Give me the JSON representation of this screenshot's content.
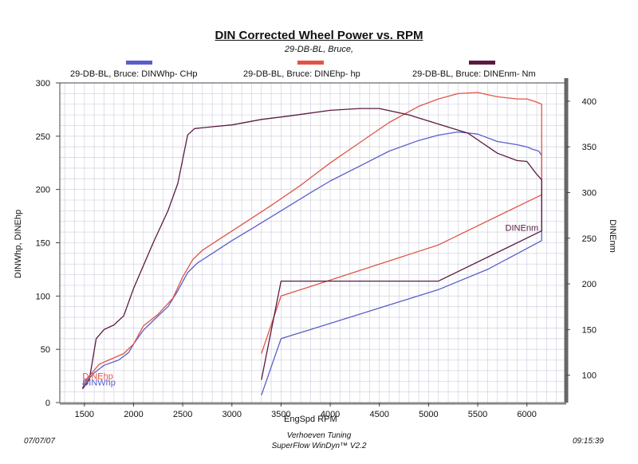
{
  "header": {
    "title": "DIN Corrected Wheel Power vs. RPM",
    "subtitle": "29-DB-BL, Bruce,"
  },
  "legend": [
    {
      "label": "29-DB-BL, Bruce: DINWhp- CHp",
      "color": "#5a5fc8"
    },
    {
      "label": "29-DB-BL, Bruce: DINEhp-  hp",
      "color": "#e05545"
    },
    {
      "label": "29-DB-BL, Bruce: DINEnm-  Nm",
      "color": "#5a1a40"
    }
  ],
  "axes": {
    "x_title": "EngSpd  RPM",
    "y_left_title": "DINWhp, DINEhp",
    "y_right_title": "DINEnm"
  },
  "footer": {
    "date": "07/07/07",
    "time": "09:15:39",
    "line1": "Verhoeven Tuning",
    "line2": "SuperFlow WinDyn™ V2.2"
  },
  "chart_data": {
    "type": "line",
    "xlabel": "EngSpd  RPM",
    "ylabel": "DINWhp, DINEhp",
    "y2label": "DINEnm",
    "xlim": [
      1250,
      6400
    ],
    "ylim": [
      0,
      300
    ],
    "y2lim": [
      70,
      420
    ],
    "xticks": [
      1500,
      2000,
      2500,
      3000,
      3500,
      4000,
      4500,
      5000,
      5500,
      6000
    ],
    "yticks": [
      0,
      50,
      100,
      150,
      200,
      250,
      300
    ],
    "y2ticks": [
      100,
      150,
      200,
      250,
      300,
      350,
      400
    ],
    "grid": true,
    "series": [
      {
        "name": "DINWhp",
        "axis": "left",
        "color": "#5a5fc8",
        "points": [
          [
            1480,
            14
          ],
          [
            1520,
            20
          ],
          [
            1600,
            28
          ],
          [
            1700,
            35
          ],
          [
            1850,
            40
          ],
          [
            1950,
            47
          ],
          [
            2000,
            55
          ],
          [
            2100,
            68
          ],
          [
            2200,
            77
          ],
          [
            2350,
            90
          ],
          [
            2450,
            105
          ],
          [
            2550,
            122
          ],
          [
            2650,
            131
          ],
          [
            2800,
            140
          ],
          [
            3000,
            152
          ],
          [
            3200,
            163
          ],
          [
            3500,
            180
          ],
          [
            3800,
            197
          ],
          [
            4000,
            208
          ],
          [
            4300,
            222
          ],
          [
            4600,
            236
          ],
          [
            4900,
            246
          ],
          [
            5100,
            251
          ],
          [
            5300,
            254
          ],
          [
            5500,
            252
          ],
          [
            5700,
            245
          ],
          [
            5900,
            242
          ],
          [
            6000,
            240
          ],
          [
            6050,
            238
          ],
          [
            6120,
            236
          ],
          [
            6150,
            232
          ],
          [
            6150,
            152
          ],
          [
            5600,
            125
          ],
          [
            5100,
            106
          ],
          [
            3500,
            60
          ],
          [
            3300,
            7
          ]
        ]
      },
      {
        "name": "DINEhp",
        "axis": "left",
        "color": "#e05545",
        "points": [
          [
            1480,
            17
          ],
          [
            1550,
            25
          ],
          [
            1650,
            36
          ],
          [
            1750,
            40
          ],
          [
            1900,
            46
          ],
          [
            2000,
            55
          ],
          [
            2100,
            72
          ],
          [
            2250,
            83
          ],
          [
            2400,
            98
          ],
          [
            2500,
            118
          ],
          [
            2600,
            134
          ],
          [
            2700,
            143
          ],
          [
            2900,
            155
          ],
          [
            3100,
            167
          ],
          [
            3400,
            185
          ],
          [
            3700,
            204
          ],
          [
            4000,
            225
          ],
          [
            4300,
            244
          ],
          [
            4600,
            263
          ],
          [
            4900,
            278
          ],
          [
            5100,
            285
          ],
          [
            5300,
            290
          ],
          [
            5500,
            291
          ],
          [
            5600,
            289
          ],
          [
            5700,
            287
          ],
          [
            5900,
            285
          ],
          [
            6000,
            285
          ],
          [
            6100,
            282
          ],
          [
            6150,
            280
          ],
          [
            6150,
            195
          ],
          [
            5100,
            148
          ],
          [
            3500,
            100
          ],
          [
            3300,
            46
          ]
        ]
      },
      {
        "name": "DINEnm",
        "axis": "right",
        "color": "#5a1a40",
        "points": [
          [
            1480,
            85
          ],
          [
            1550,
            95
          ],
          [
            1620,
            140
          ],
          [
            1700,
            150
          ],
          [
            1800,
            155
          ],
          [
            1900,
            165
          ],
          [
            2000,
            195
          ],
          [
            2100,
            220
          ],
          [
            2200,
            245
          ],
          [
            2350,
            280
          ],
          [
            2450,
            310
          ],
          [
            2550,
            363
          ],
          [
            2620,
            370
          ],
          [
            2800,
            372
          ],
          [
            3000,
            374
          ],
          [
            3300,
            380
          ],
          [
            3600,
            384
          ],
          [
            4000,
            390
          ],
          [
            4300,
            392
          ],
          [
            4500,
            392
          ],
          [
            4800,
            385
          ],
          [
            5100,
            375
          ],
          [
            5400,
            365
          ],
          [
            5700,
            343
          ],
          [
            5900,
            335
          ],
          [
            6000,
            334
          ],
          [
            6100,
            320
          ],
          [
            6150,
            314
          ],
          [
            6150,
            258
          ],
          [
            5100,
            203
          ],
          [
            3500,
            203
          ],
          [
            3300,
            95
          ]
        ]
      }
    ],
    "annotations": [
      {
        "text": "DINEhp",
        "x": 1480,
        "y": 22,
        "axis": "left",
        "color": "#e05545"
      },
      {
        "text": "DINWhp",
        "x": 1480,
        "y": 16,
        "axis": "left",
        "color": "#5a5fc8"
      },
      {
        "text": "DINEnm",
        "x": 5780,
        "y": 258,
        "axis": "right",
        "color": "#5a1a40"
      }
    ]
  }
}
